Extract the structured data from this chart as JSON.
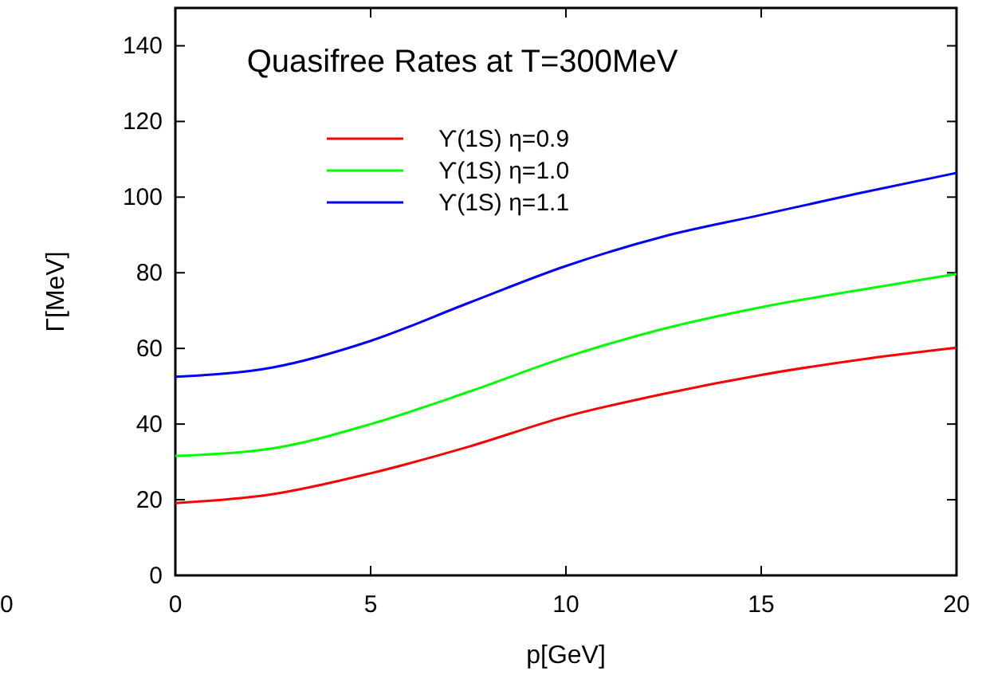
{
  "chart_data": {
    "type": "line",
    "title": "Quasifree Rates at T=300MeV",
    "xlabel": "p[GeV]",
    "ylabel": "Γ[MeV]",
    "x": [
      0,
      2.5,
      5,
      7.5,
      10,
      12.5,
      15,
      17.5,
      20
    ],
    "series": [
      {
        "name": "ϒ(1S) η=0.9",
        "color": "#ff0000",
        "values": [
          19.1,
          21.5,
          27,
          34,
          42,
          48,
          53,
          57,
          60.2
        ]
      },
      {
        "name": "ϒ(1S) η=1.0",
        "color": "#00ff00",
        "values": [
          31.6,
          33.6,
          40,
          48.5,
          57.7,
          65.2,
          70.9,
          75.4,
          79.7
        ]
      },
      {
        "name": "ϒ(1S) η=1.1",
        "color": "#0000ff",
        "values": [
          52.5,
          55,
          62,
          72,
          81.8,
          89.6,
          95.3,
          101,
          106.4
        ]
      }
    ],
    "xlim": [
      0,
      20
    ],
    "xticks": [
      0,
      5,
      10,
      15,
      20
    ],
    "ylim": [
      0,
      150
    ],
    "yticks": [
      0,
      20,
      40,
      60,
      80,
      100,
      120,
      140
    ],
    "grid": false,
    "legend": "top",
    "marker": "none",
    "line_style": "solid",
    "annotations": [
      "0"
    ]
  }
}
